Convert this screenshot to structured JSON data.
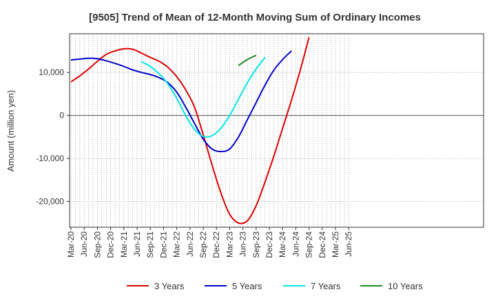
{
  "chart_data": {
    "type": "line",
    "title": "[9505]  Trend of Mean of 12-Month Moving Sum of Ordinary Incomes",
    "xlabel": "",
    "ylabel": "Amount (million yen)",
    "ylim": [
      -26000,
      19000
    ],
    "yticks": [
      10000,
      0,
      -10000,
      -20000
    ],
    "ytick_labels": [
      "10,000",
      "0",
      "-10,000",
      "-20,000"
    ],
    "x_tick_labels": [
      "Mar-20",
      "Jun-20",
      "Sep-20",
      "Dec-20",
      "Mar-21",
      "Jun-21",
      "Sep-21",
      "Dec-21",
      "Mar-22",
      "Jun-22",
      "Sep-22",
      "Dec-22",
      "Mar-23",
      "Jun-23",
      "Sep-23",
      "Dec-23",
      "Mar-24",
      "Jun-24",
      "Sep-24",
      "Dec-24",
      "Mar-25",
      "Jun-25"
    ],
    "x_start": "Mar-20",
    "grid": true,
    "legend_position": "bottom",
    "series": [
      {
        "name": "3 Years",
        "color": "#dd0000",
        "start_month_index": 0,
        "values": [
          7800,
          9200,
          10800,
          12600,
          14200,
          15000,
          15500,
          15400,
          14500,
          13500,
          12600,
          11200,
          9000,
          6000,
          2000,
          -4500,
          -11500,
          -18000,
          -23000,
          -25000,
          -24500,
          -21000,
          -15500,
          -9500,
          -3000,
          3500,
          10500,
          18200
        ]
      },
      {
        "name": "5 Years",
        "color": "#0000cc",
        "start_month_index": 0,
        "values": [
          12900,
          13100,
          13300,
          13200,
          12700,
          12100,
          11400,
          10600,
          10000,
          9500,
          8800,
          7600,
          5400,
          2000,
          -1800,
          -5500,
          -7800,
          -8400,
          -7800,
          -5000,
          -1000,
          3000,
          7000,
          10500,
          13000,
          15000
        ]
      },
      {
        "name": "7 Years",
        "color": "#00e5e5",
        "start_month_index": 8,
        "values": [
          12500,
          11400,
          9700,
          7300,
          4000,
          0,
          -3200,
          -4900,
          -4700,
          -3000,
          0,
          3800,
          7600,
          10800,
          13500
        ]
      },
      {
        "name": "10 Years",
        "color": "#228822",
        "start_month_index": 19,
        "values": [
          11600,
          13000,
          14000
        ]
      }
    ]
  }
}
